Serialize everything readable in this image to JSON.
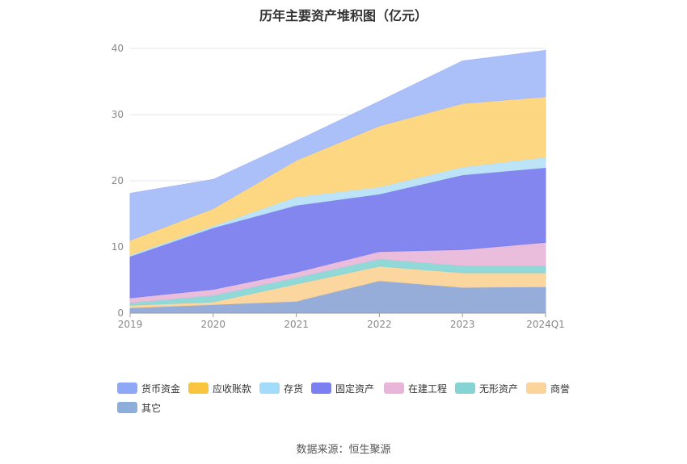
{
  "title": "历年主要资产堆积图（亿元）",
  "source": "数据来源：恒生聚源",
  "chart_data": {
    "type": "area",
    "stacked": true,
    "title": "历年主要资产堆积图（亿元）",
    "x": [
      "2019",
      "2020",
      "2021",
      "2022",
      "2023",
      "2024Q1"
    ],
    "ylim": [
      0,
      40
    ],
    "yticks": [
      "0",
      "10",
      "20",
      "30",
      "40"
    ],
    "grid": true,
    "legend_position": "bottom",
    "series": [
      {
        "name": "其它",
        "color": "#8fa9d6",
        "values": [
          0.8,
          1.3,
          1.8,
          4.9,
          3.9,
          4.0
        ]
      },
      {
        "name": "商誉",
        "color": "#fbd59a",
        "values": [
          0.4,
          0.4,
          2.6,
          2.2,
          2.2,
          2.1
        ]
      },
      {
        "name": "无形资产",
        "color": "#8bd6d6",
        "values": [
          0.4,
          1.0,
          1.0,
          1.1,
          1.1,
          1.1
        ]
      },
      {
        "name": "在建工程",
        "color": "#e9b9da",
        "values": [
          0.7,
          0.9,
          0.8,
          1.1,
          2.4,
          3.5
        ]
      },
      {
        "name": "固定资产",
        "color": "#7d80ef",
        "values": [
          6.3,
          9.3,
          10.1,
          8.7,
          11.3,
          11.3
        ]
      },
      {
        "name": "存货",
        "color": "#b9e2f7",
        "values": [
          0.2,
          0.3,
          1.3,
          1.1,
          1.2,
          1.6
        ]
      },
      {
        "name": "应收账款",
        "color": "#fdd57b",
        "values": [
          2.2,
          2.6,
          5.5,
          9.2,
          9.6,
          9.1
        ]
      },
      {
        "name": "货币资金",
        "color": "#a6bcf9",
        "values": [
          7.1,
          4.4,
          2.9,
          3.7,
          6.4,
          7.0
        ]
      }
    ]
  },
  "legend": [
    {
      "label": "货币资金",
      "color": "#8ea7f7"
    },
    {
      "label": "应收账款",
      "color": "#fbc43f"
    },
    {
      "label": "存货",
      "color": "#a3dbfb"
    },
    {
      "label": "固定资产",
      "color": "#7b7ff0"
    },
    {
      "label": "在建工程",
      "color": "#e8b5d8"
    },
    {
      "label": "无形资产",
      "color": "#86d3d4"
    },
    {
      "label": "商誉",
      "color": "#fbd49c"
    },
    {
      "label": "其它",
      "color": "#8daed8"
    }
  ]
}
